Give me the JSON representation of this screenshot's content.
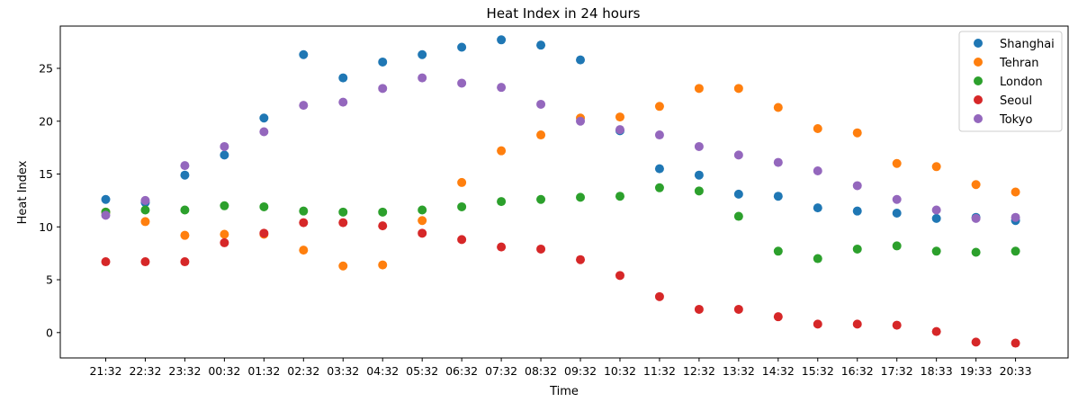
{
  "chart_data": {
    "type": "scatter",
    "title": "Heat Index in 24 hours",
    "xlabel": "Time",
    "ylabel": "Heat Index",
    "categories": [
      "21:32",
      "22:32",
      "23:32",
      "00:32",
      "01:32",
      "02:32",
      "03:32",
      "04:32",
      "05:32",
      "06:32",
      "07:32",
      "08:32",
      "09:32",
      "10:32",
      "11:32",
      "12:32",
      "13:32",
      "14:32",
      "15:32",
      "16:32",
      "17:32",
      "18:33",
      "19:33",
      "20:33"
    ],
    "ylim": [
      -2.4,
      29.0
    ],
    "yticks": [
      0,
      5,
      10,
      15,
      20,
      25
    ],
    "grid": false,
    "legend_position": "top-right",
    "series": [
      {
        "name": "Shanghai",
        "color": "#1f77b4",
        "values": [
          12.6,
          12.3,
          14.9,
          16.8,
          20.3,
          26.3,
          24.1,
          25.6,
          26.3,
          27.0,
          27.7,
          27.2,
          25.8,
          19.1,
          15.5,
          14.9,
          13.1,
          12.9,
          11.8,
          11.5,
          11.3,
          10.8,
          10.9,
          10.6
        ]
      },
      {
        "name": "Tehran",
        "color": "#ff7f0e",
        "values": [
          11.4,
          10.5,
          9.2,
          9.3,
          9.3,
          7.8,
          6.3,
          6.4,
          10.6,
          14.2,
          17.2,
          18.7,
          20.3,
          20.4,
          21.4,
          23.1,
          23.1,
          21.3,
          19.3,
          18.9,
          16.0,
          15.7,
          14.0,
          13.3
        ]
      },
      {
        "name": "London",
        "color": "#2ca02c",
        "values": [
          11.4,
          11.6,
          11.6,
          12.0,
          11.9,
          11.5,
          11.4,
          11.4,
          11.6,
          11.9,
          12.4,
          12.6,
          12.8,
          12.9,
          13.7,
          13.4,
          11.0,
          7.7,
          7.0,
          7.9,
          8.2,
          7.7,
          7.6,
          7.7
        ]
      },
      {
        "name": "Seoul",
        "color": "#d62728",
        "values": [
          6.7,
          6.7,
          6.7,
          8.5,
          9.4,
          10.4,
          10.4,
          10.1,
          9.4,
          8.8,
          8.1,
          7.9,
          6.9,
          5.4,
          3.4,
          2.2,
          2.2,
          1.5,
          0.8,
          0.8,
          0.7,
          0.1,
          -0.9,
          -1.0
        ]
      },
      {
        "name": "Tokyo",
        "color": "#9467bd",
        "values": [
          11.1,
          12.5,
          15.8,
          17.6,
          19.0,
          21.5,
          21.8,
          23.1,
          24.1,
          23.6,
          23.2,
          21.6,
          20.0,
          19.2,
          18.7,
          17.6,
          16.8,
          16.1,
          15.3,
          13.9,
          12.6,
          11.6,
          10.8,
          10.9
        ]
      }
    ]
  }
}
